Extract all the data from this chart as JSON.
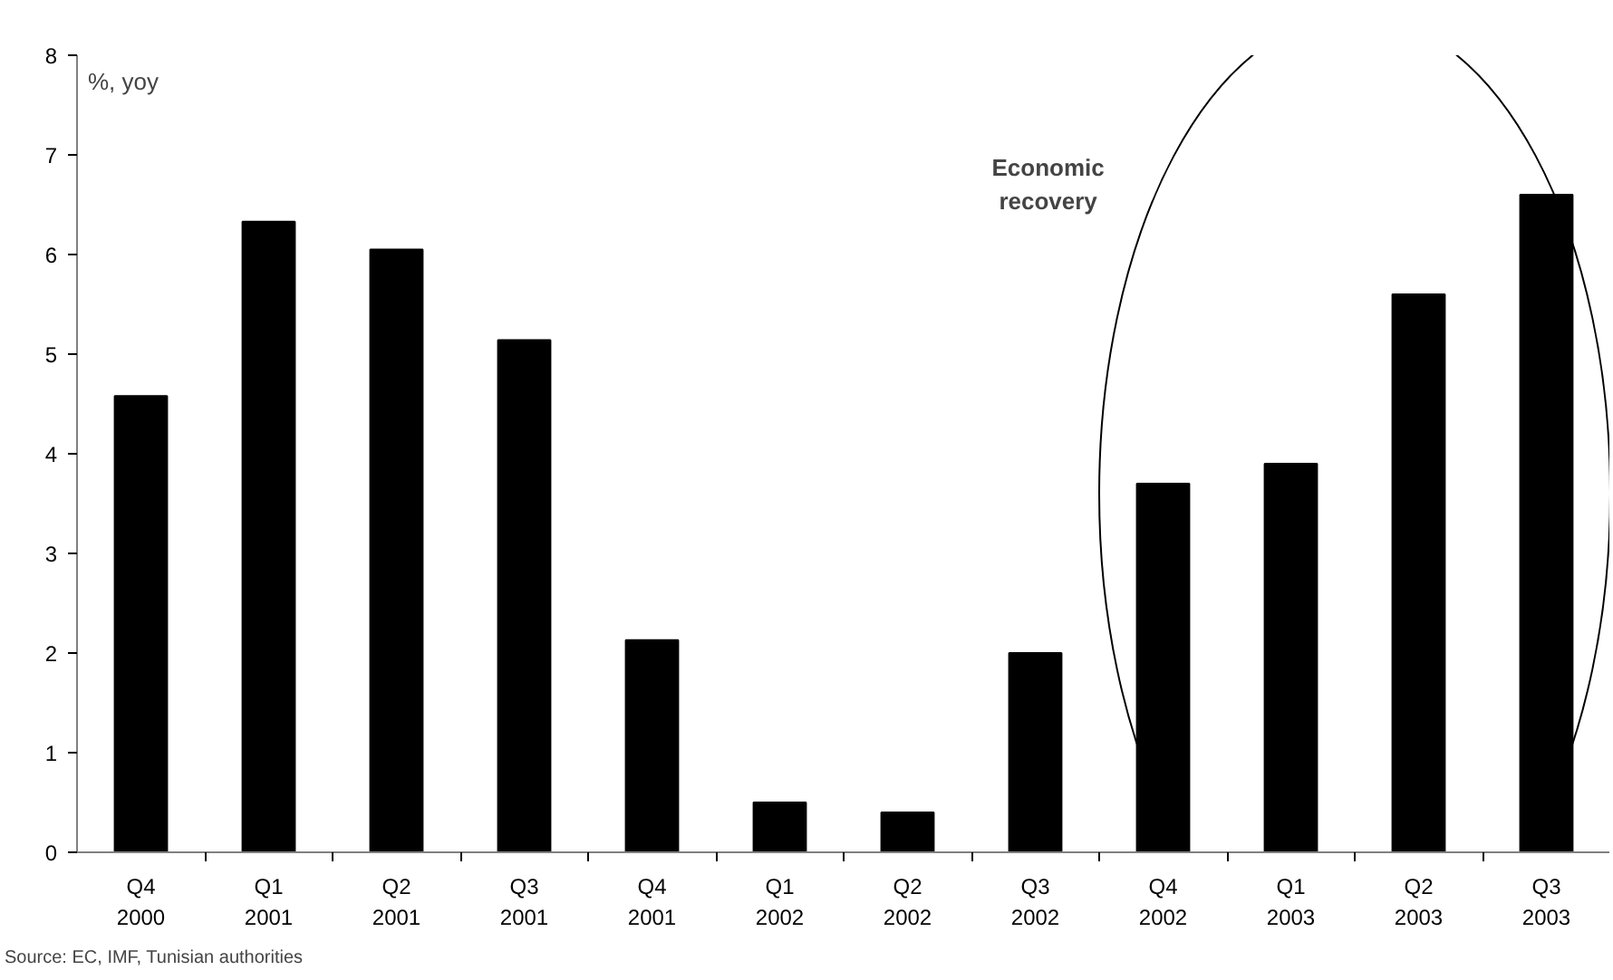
{
  "chart_data": {
    "type": "bar",
    "ylabel": "%, yoy",
    "categories": [
      "Q4\n2000",
      "Q1\n2001",
      "Q2\n2001",
      "Q3\n2001",
      "Q4\n2001",
      "Q1\n2002",
      "Q2\n2002",
      "Q3\n2002",
      "Q4\n2002",
      "Q1\n2003",
      "Q2\n2003",
      "Q3\n2003"
    ],
    "values": [
      4.58,
      6.33,
      6.05,
      5.14,
      2.13,
      0.5,
      0.4,
      2.0,
      3.7,
      3.9,
      5.6,
      6.6
    ],
    "color": "#000000",
    "ylim": [
      0,
      8
    ],
    "yticks": [
      0,
      1,
      2,
      3,
      4,
      5,
      6,
      7,
      8
    ],
    "grid": false,
    "annotations": [
      "Economic\nrecovery",
      "Source: EC, IMF, Tunisian authorities"
    ]
  }
}
